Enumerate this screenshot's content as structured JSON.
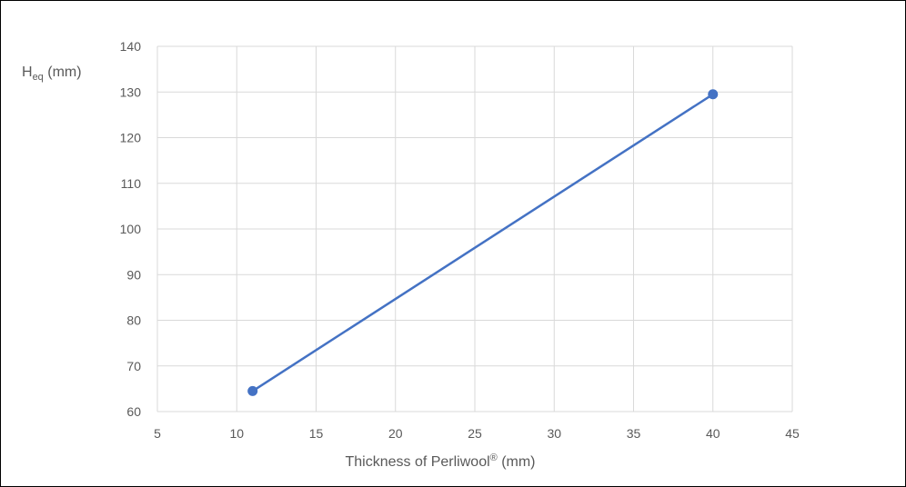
{
  "chart_data": {
    "type": "line",
    "xlabel_main": "Thickness of Perliwool",
    "xlabel_sup": "®",
    "xlabel_unit": " (mm)",
    "ylabel_main": "H",
    "ylabel_sub": "eq",
    "ylabel_unit": " (mm)",
    "xlim": [
      5,
      45
    ],
    "ylim": [
      60,
      140
    ],
    "xticks": [
      5,
      10,
      15,
      20,
      25,
      30,
      35,
      40,
      45
    ],
    "yticks": [
      60,
      70,
      80,
      90,
      100,
      110,
      120,
      130,
      140
    ],
    "grid": true,
    "series": [
      {
        "x": [
          11,
          40
        ],
        "y": [
          64.5,
          129.5
        ]
      }
    ],
    "colors": {
      "series": "#4472c4",
      "grid": "#d9d9d9",
      "text": "#595959"
    }
  }
}
